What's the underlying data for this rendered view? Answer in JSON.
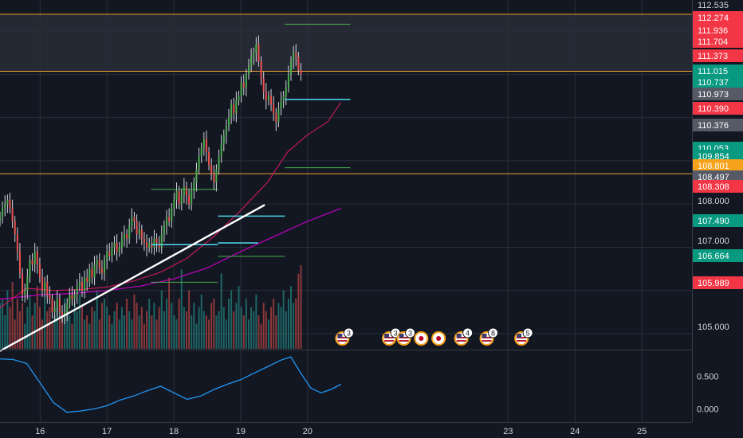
{
  "chart_data": {
    "type": "candlestick",
    "symbol_pair": "USDJPY-like",
    "colors": {
      "background": "#131722",
      "grid": "#2a2e39",
      "up": "#26a69a",
      "up_candle": "#4caf50",
      "down": "#ef5350",
      "zone_fill": "#2a2e39",
      "zone_line": "#f0a030",
      "trendline": "#ffffff",
      "ema_red": "#c2185b",
      "ema_magenta": "#c000c0",
      "level_green": "#4caf50",
      "level_cyan": "#4dd0e1",
      "osc": "#2196f3",
      "axis_text": "#d1d4dc",
      "tag_red": "#f23645",
      "tag_green": "#089981",
      "tag_gray": "#555a66",
      "tag_orange": "#f7a21b"
    },
    "x_axis": {
      "ticks": [
        {
          "label": "16",
          "day": 16
        },
        {
          "label": "17",
          "day": 17
        },
        {
          "label": "18",
          "day": 18
        },
        {
          "label": "19",
          "day": 19
        },
        {
          "label": "20",
          "day": 20
        },
        {
          "label": "23",
          "day": 23
        },
        {
          "label": "24",
          "day": 24
        },
        {
          "label": "25",
          "day": 25
        }
      ],
      "range": [
        15.4,
        25.75
      ]
    },
    "price_axis": {
      "range": [
        104.65,
        112.72
      ],
      "ticks": [
        {
          "label": "112.535",
          "style": "plain"
        },
        {
          "label": "112.274",
          "style": "red"
        },
        {
          "label": "111.936",
          "style": "red"
        },
        {
          "label": "111.704",
          "style": "red"
        },
        {
          "label": "111.373",
          "style": "red"
        },
        {
          "label": "111.015",
          "style": "green"
        },
        {
          "label": "110.737",
          "style": "green"
        },
        {
          "label": "110.973",
          "style": "gray"
        },
        {
          "label": "110.390",
          "style": "red"
        },
        {
          "label": "110.376",
          "style": "gray"
        },
        {
          "label": "110.053",
          "style": "green"
        },
        {
          "label": "109.854",
          "style": "green"
        },
        {
          "label": "108.801",
          "style": "orange"
        },
        {
          "label": "108.497",
          "style": "gray"
        },
        {
          "label": "108.308",
          "style": "red"
        },
        {
          "label": "108.000",
          "style": "plain"
        },
        {
          "label": "107.490",
          "style": "green"
        },
        {
          "label": "107.000",
          "style": "plain"
        },
        {
          "label": "106.664",
          "style": "green"
        },
        {
          "label": "105.989",
          "style": "red"
        },
        {
          "label": "105.000",
          "style": "plain"
        }
      ]
    },
    "price_levels": [
      {
        "name": "resistance-zone",
        "top": 112.39,
        "bottom": 111.07
      },
      {
        "name": "support-line",
        "value": 108.7
      }
    ],
    "horizontal_markers": [
      {
        "color": "green",
        "y": 112.16,
        "x0": 19.66,
        "x1": 20.64
      },
      {
        "color": "cyan",
        "y": 110.42,
        "x0": 19.66,
        "x1": 20.64
      },
      {
        "color": "green",
        "y": 108.84,
        "x0": 19.66,
        "x1": 20.64
      },
      {
        "color": "green",
        "y": 108.34,
        "x0": 17.66,
        "x1": 18.66
      },
      {
        "color": "cyan",
        "y": 107.72,
        "x0": 18.66,
        "x1": 19.66
      },
      {
        "color": "cyan",
        "y": 107.06,
        "x0": 17.66,
        "x1": 18.66
      },
      {
        "color": "cyan",
        "y": 107.1,
        "x0": 18.66,
        "x1": 19.26
      },
      {
        "color": "green",
        "y": 106.79,
        "x0": 18.66,
        "x1": 19.66
      },
      {
        "color": "green",
        "y": 106.19,
        "x0": 17.66,
        "x1": 18.66
      }
    ],
    "trendline": {
      "x0": 15.4,
      "y0": 104.6,
      "x1": 19.36,
      "y1": 107.98
    },
    "ema_red": {
      "x": [
        15.4,
        15.8,
        16.2,
        16.6,
        17.0,
        17.4,
        17.8,
        18.2,
        18.6,
        19.0,
        19.4,
        19.7,
        20.0,
        20.3,
        20.5
      ],
      "y": [
        105.6,
        106.05,
        106.0,
        106.02,
        106.08,
        106.22,
        106.42,
        106.75,
        107.25,
        107.85,
        108.5,
        109.2,
        109.6,
        109.9,
        110.35
      ]
    },
    "ema_magenta": {
      "x": [
        15.4,
        16.0,
        16.5,
        17.0,
        17.5,
        18.0,
        18.5,
        19.0,
        19.5,
        20.0,
        20.5
      ],
      "y": [
        105.8,
        105.9,
        105.93,
        106.0,
        106.1,
        106.27,
        106.52,
        106.9,
        107.25,
        107.6,
        107.9
      ]
    },
    "candles": {
      "start_day": 15.4,
      "step": 0.0372,
      "close": [
        107.7,
        107.9,
        108.0,
        108.1,
        107.9,
        107.6,
        107.3,
        106.9,
        106.4,
        105.9,
        106.0,
        106.3,
        106.7,
        106.6,
        106.9,
        106.6,
        106.3,
        106.0,
        106.2,
        105.9,
        105.8,
        105.5,
        105.6,
        105.8,
        105.5,
        105.4,
        105.5,
        105.7,
        105.9,
        105.8,
        105.9,
        106.1,
        106.2,
        106.0,
        106.3,
        106.2,
        106.5,
        106.3,
        106.6,
        106.7,
        106.5,
        106.4,
        106.7,
        106.9,
        106.8,
        107.0,
        107.1,
        106.9,
        107.0,
        107.2,
        107.3,
        107.2,
        107.5,
        107.7,
        107.6,
        107.3,
        107.4,
        107.2,
        107.1,
        107.0,
        107.1,
        107.0,
        107.2,
        107.1,
        107.0,
        107.3,
        107.5,
        107.7,
        107.6,
        107.9,
        108.1,
        108.3,
        108.0,
        108.2,
        108.4,
        108.2,
        108.0,
        108.3,
        108.5,
        108.8,
        109.1,
        109.3,
        109.5,
        109.2,
        108.9,
        108.7,
        108.5,
        108.8,
        109.1,
        109.4,
        109.6,
        109.8,
        110.0,
        110.3,
        110.1,
        110.4,
        110.5,
        110.8,
        110.7,
        111.0,
        111.2,
        111.4,
        111.5,
        111.7,
        111.3,
        110.9,
        110.6,
        110.4,
        110.5,
        110.3,
        110.1,
        109.9,
        110.2,
        110.4,
        110.5,
        110.7,
        111.0,
        111.3,
        111.5,
        111.4,
        111.1,
        111.0
      ]
    },
    "volume": {
      "start_day": 15.4,
      "step": 0.0372,
      "values": [
        0.55,
        0.6,
        0.4,
        0.7,
        0.5,
        0.8,
        0.35,
        0.6,
        0.45,
        0.55,
        0.3,
        0.5,
        0.65,
        0.4,
        0.55,
        0.75,
        0.5,
        0.35,
        0.6,
        0.45,
        0.5,
        0.3,
        0.4,
        0.55,
        0.35,
        0.45,
        0.6,
        0.5,
        0.4,
        0.3,
        0.55,
        0.45,
        0.65,
        0.5,
        0.35,
        0.4,
        0.3,
        0.5,
        0.45,
        0.7,
        0.35,
        0.55,
        0.6,
        0.5,
        0.4,
        0.3,
        0.45,
        0.55,
        0.35,
        0.5,
        0.4,
        0.6,
        0.45,
        0.35,
        0.65,
        0.55,
        0.4,
        0.5,
        0.3,
        0.45,
        0.6,
        0.4,
        0.55,
        0.35,
        0.5,
        0.7,
        0.45,
        0.6,
        0.85,
        0.55,
        0.4,
        0.35,
        0.6,
        0.95,
        0.5,
        0.45,
        0.7,
        0.4,
        0.55,
        0.3,
        0.5,
        0.65,
        0.45,
        0.4,
        0.35,
        0.55,
        0.6,
        0.4,
        0.45,
        0.9,
        0.5,
        0.35,
        0.6,
        0.7,
        0.45,
        0.55,
        0.75,
        0.5,
        0.4,
        0.6,
        0.35,
        0.5,
        0.45,
        0.65,
        0.4,
        0.3,
        0.55,
        0.45,
        0.35,
        0.5,
        0.6,
        0.4,
        0.55,
        0.5,
        0.7,
        0.45,
        0.6,
        0.75,
        0.55,
        0.6,
        0.9,
        1.0
      ]
    },
    "oscillator": {
      "range": [
        -0.2,
        0.9
      ],
      "ticks": [
        {
          "label": "0.500",
          "value": 0.5
        },
        {
          "label": "0.000",
          "value": 0.0
        }
      ],
      "x": [
        15.4,
        15.6,
        15.8,
        16.0,
        16.2,
        16.4,
        16.6,
        16.8,
        17.0,
        17.2,
        17.4,
        17.6,
        17.8,
        18.0,
        18.2,
        18.4,
        18.6,
        18.8,
        19.0,
        19.2,
        19.4,
        19.6,
        19.75,
        19.9,
        20.05,
        20.2,
        20.35,
        20.5
      ],
      "y": [
        0.77,
        0.76,
        0.7,
        0.4,
        0.1,
        -0.05,
        -0.03,
        0.0,
        0.05,
        0.14,
        0.2,
        0.28,
        0.35,
        0.25,
        0.15,
        0.2,
        0.3,
        0.38,
        0.45,
        0.55,
        0.65,
        0.75,
        0.8,
        0.55,
        0.32,
        0.25,
        0.3,
        0.38
      ]
    },
    "event_markers": [
      {
        "day": 20.52,
        "count": "3",
        "kind": "us-flag"
      },
      {
        "day": 21.22,
        "count": "3",
        "kind": "us-flag"
      },
      {
        "day": 21.44,
        "count": "3",
        "kind": "us-flag"
      },
      {
        "day": 21.7,
        "count": "",
        "kind": "jp-flag"
      },
      {
        "day": 21.96,
        "count": "",
        "kind": "jp-flag"
      },
      {
        "day": 22.3,
        "count": "4",
        "kind": "us-flag"
      },
      {
        "day": 22.68,
        "count": "8",
        "kind": "us-flag"
      },
      {
        "day": 23.2,
        "count": "5",
        "kind": "us-flag"
      }
    ]
  }
}
